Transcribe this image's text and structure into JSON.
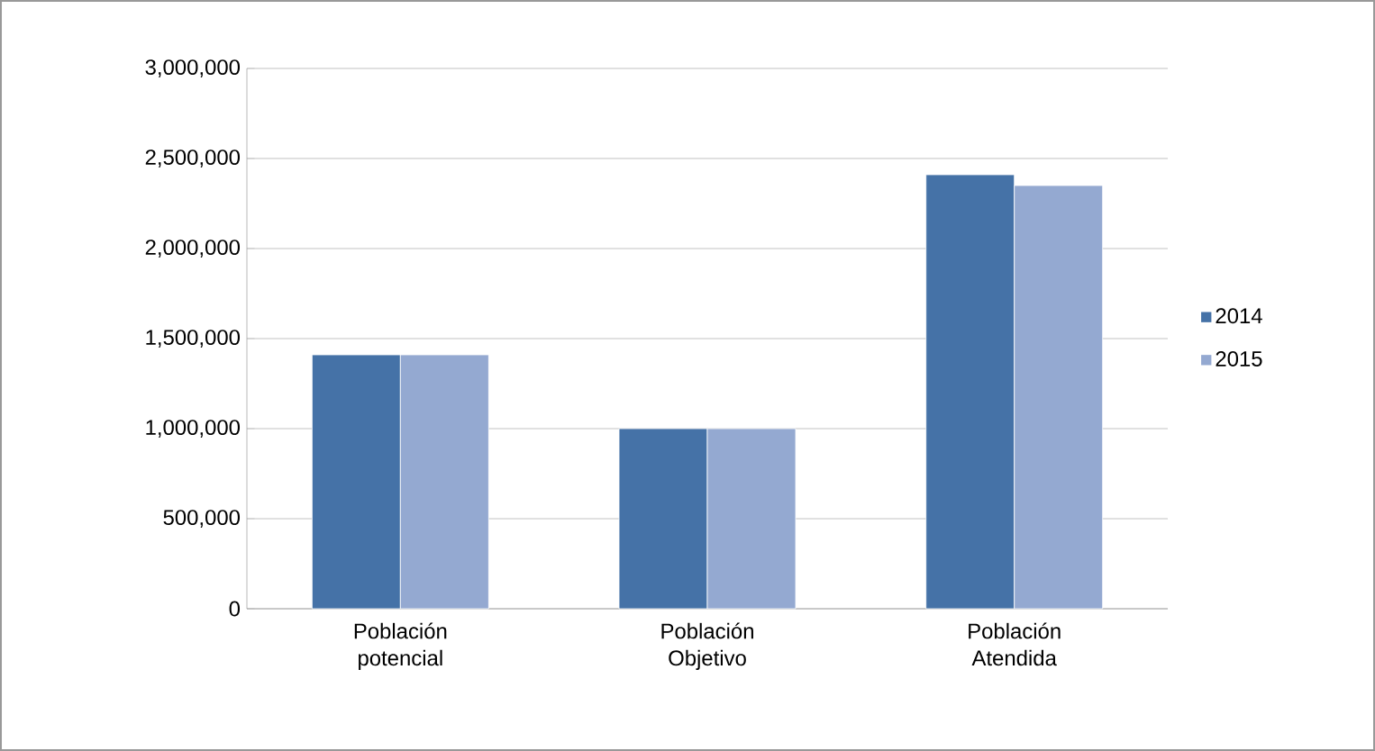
{
  "chart_data": {
    "type": "bar",
    "categories": [
      "Población potencial",
      "Población Objetivo",
      "Población Atendida"
    ],
    "series": [
      {
        "name": "2014",
        "color": "#4572a7",
        "values": [
          1410000,
          1000000,
          2410000
        ]
      },
      {
        "name": "2015",
        "color": "#94a9d1",
        "values": [
          1410000,
          1000000,
          2350000
        ]
      }
    ],
    "ylim": [
      0,
      3000000
    ],
    "yticks": [
      {
        "value": 0,
        "label": "0"
      },
      {
        "value": 500000,
        "label": "500,000"
      },
      {
        "value": 1000000,
        "label": "1,000,000"
      },
      {
        "value": 1500000,
        "label": "1,500,000"
      },
      {
        "value": 2000000,
        "label": "2,000,000"
      },
      {
        "value": 2500000,
        "label": "2,500,000"
      },
      {
        "value": 3000000,
        "label": "3,000,000"
      }
    ],
    "grid": "y",
    "legend": "right"
  }
}
